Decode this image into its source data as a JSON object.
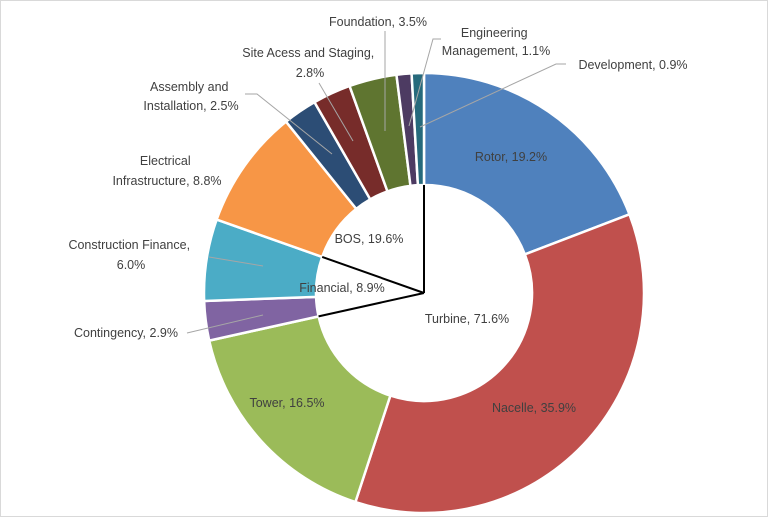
{
  "chart_data": {
    "type": "pie",
    "variant": "donut",
    "title": "",
    "start_angle": "12 o'clock, clockwise",
    "slices": [
      {
        "label": "Rotor",
        "value": 19.2,
        "text": "Rotor, 19.2%",
        "color": "#4F81BD"
      },
      {
        "label": "Nacelle",
        "value": 35.9,
        "text": "Nacelle, 35.9%",
        "color": "#C0504D"
      },
      {
        "label": "Tower",
        "value": 16.5,
        "text": "Tower, 16.5%",
        "color": "#9BBB59"
      },
      {
        "label": "Contingency",
        "value": 2.9,
        "text": "Contingency, 2.9%",
        "color": "#8064A2"
      },
      {
        "label": "Construction Finance",
        "value": 6.0,
        "text": [
          "Construction Finance,",
          "6.0%"
        ],
        "color": "#4BACC6"
      },
      {
        "label": "Electrical Infrastructure",
        "value": 8.8,
        "text": [
          "Electrical",
          "Infrastructure, 8.8%"
        ],
        "color": "#F79646"
      },
      {
        "label": "Assembly and Installation",
        "value": 2.5,
        "text": [
          "Assembly and",
          "Installation, 2.5%"
        ],
        "color": "#2C4D75"
      },
      {
        "label": "Site Acess and Staging",
        "value": 2.8,
        "text": [
          "Site Acess and Staging,",
          "2.8%"
        ],
        "color": "#772C2A"
      },
      {
        "label": "Foundation",
        "value": 3.5,
        "text": "Foundation, 3.5%",
        "color": "#5F7530"
      },
      {
        "label": "Engineering Management",
        "value": 1.1,
        "text": [
          "Engineering",
          "Management, 1.1%"
        ],
        "color": "#4D3B62"
      },
      {
        "label": "Development",
        "value": 0.9,
        "text": "Development, 0.9%",
        "color": "#276A7C"
      }
    ],
    "groups": [
      {
        "label": "Turbine",
        "value": 71.6,
        "text": "Turbine, 71.6%"
      },
      {
        "label": "Financial",
        "value": 8.9,
        "text": "Financial, 8.9%"
      },
      {
        "label": "BOS",
        "value": 19.6,
        "text": "BOS, 19.6%"
      }
    ]
  }
}
